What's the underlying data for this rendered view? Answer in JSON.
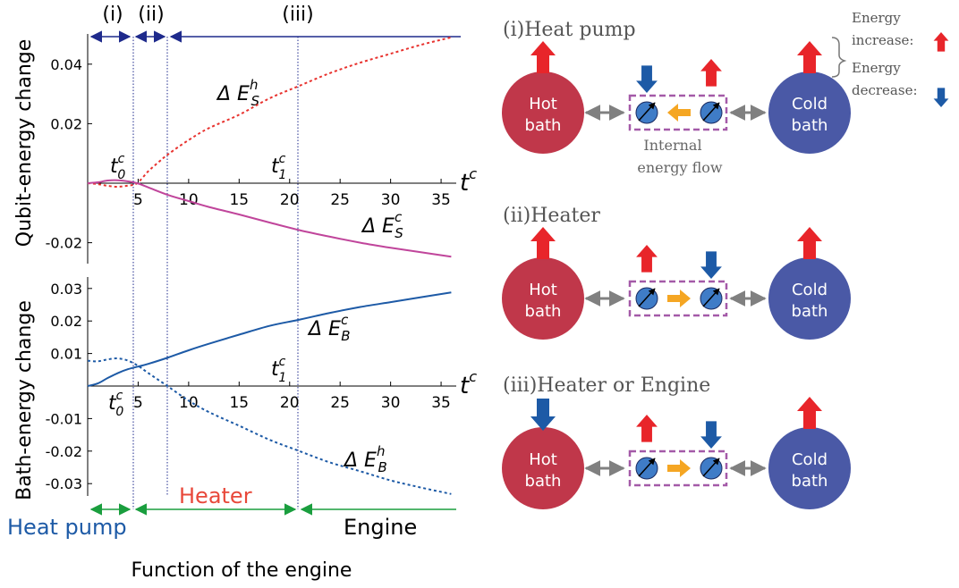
{
  "plot": {
    "phase_labels": [
      "(i)",
      "(ii)",
      "(iii)"
    ],
    "top_ylabel": "Qubit-energy change",
    "bottom_ylabel": "Bath-energy change",
    "xaxis_var": "t",
    "xaxis_sup": "c",
    "t0_label": "t",
    "t0_sub": "0",
    "t0_sup": "c",
    "t1_label": "t",
    "t1_sub": "1",
    "t1_sup": "c",
    "bottom_xlabel": "Function of the engine",
    "function_labels": {
      "heat_pump": "Heat pump",
      "heater": "Heater",
      "engine": "Engine"
    },
    "curve_labels": {
      "es_h": {
        "base": "Δ E",
        "sub": "S",
        "sup": "h"
      },
      "es_c": {
        "base": "Δ E",
        "sub": "S",
        "sup": "c"
      },
      "eb_c": {
        "base": "Δ E",
        "sub": "B",
        "sup": "c"
      },
      "eb_h": {
        "base": "Δ E",
        "sub": "B",
        "sup": "h"
      }
    },
    "x_ticks": [
      "5",
      "10",
      "15",
      "20",
      "25",
      "30",
      "35"
    ],
    "top_yticks": [
      "0.04",
      "0.02",
      "-0.02"
    ],
    "bottom_yticks": [
      "0.03",
      "0.02",
      "0.01",
      "-0.01",
      "-0.02",
      "-0.03"
    ],
    "colors": {
      "es_h": "#e8322e",
      "es_c": "#c0459b",
      "eb": "#1d5aa6",
      "phase": "#1e2a8c",
      "function_arrow": "#1a9e3e",
      "heat_pump_text": "#1d5aa6",
      "heater_text": "#e8483a",
      "engine_text": "#000000"
    }
  },
  "chart_data": [
    {
      "type": "line",
      "title": "",
      "xlabel": "t^c",
      "ylabel": "Qubit-energy change",
      "xlim": [
        0,
        36.5
      ],
      "ylim": [
        -0.026,
        0.052
      ],
      "phase_boundaries": [
        4.9,
        7.9,
        20.8
      ],
      "series": [
        {
          "name": "ΔE_S^h",
          "style": "dotted",
          "x": [
            0,
            1,
            2,
            3,
            4,
            4.9,
            6,
            7,
            8,
            10,
            12,
            15,
            18,
            20.8,
            24,
            27,
            30,
            33,
            36
          ],
          "y": [
            0,
            -0.0003,
            -0.0009,
            -0.0012,
            -0.0008,
            0,
            0.004,
            0.007,
            0.0098,
            0.0145,
            0.0185,
            0.023,
            0.0285,
            0.0325,
            0.037,
            0.0405,
            0.0435,
            0.0465,
            0.049
          ]
        },
        {
          "name": "ΔE_S^c",
          "style": "solid",
          "x": [
            0,
            1,
            2,
            3,
            4,
            4.9,
            6,
            8,
            10,
            12,
            15,
            18,
            21,
            24,
            27,
            30,
            33,
            36
          ],
          "y": [
            0,
            0.0003,
            0.0009,
            0.001,
            0.0006,
            0,
            -0.0014,
            -0.004,
            -0.006,
            -0.008,
            -0.0105,
            -0.0132,
            -0.0158,
            -0.018,
            -0.02,
            -0.0217,
            -0.0232,
            -0.0247
          ]
        }
      ]
    },
    {
      "type": "line",
      "title": "",
      "xlabel": "t^c",
      "ylabel": "Bath-energy change",
      "xlim": [
        0,
        36.5
      ],
      "ylim": [
        -0.036,
        0.032
      ],
      "phase_boundaries": [
        4.9,
        7.9,
        20.8
      ],
      "series": [
        {
          "name": "ΔE_B^c",
          "style": "solid",
          "x": [
            0,
            1,
            2,
            3,
            4,
            5,
            6,
            8,
            10,
            12,
            15,
            18,
            20.8,
            24,
            27,
            30,
            33,
            36
          ],
          "y": [
            0,
            0.0008,
            0.0025,
            0.004,
            0.0052,
            0.006,
            0.0068,
            0.0088,
            0.011,
            0.013,
            0.0158,
            0.0185,
            0.0203,
            0.0225,
            0.0243,
            0.0258,
            0.0273,
            0.0288
          ]
        },
        {
          "name": "ΔE_B^h",
          "style": "dotted",
          "x": [
            0,
            1,
            2,
            3,
            4,
            5,
            6,
            7.9,
            10,
            12,
            15,
            18,
            20.8,
            24,
            27,
            30,
            33,
            36
          ],
          "y": [
            0.0078,
            0.0076,
            0.0082,
            0.0085,
            0.0078,
            0.0062,
            0.004,
            0,
            -0.0045,
            -0.008,
            -0.0122,
            -0.0165,
            -0.0198,
            -0.0235,
            -0.0262,
            -0.029,
            -0.0312,
            -0.0332
          ]
        }
      ]
    }
  ],
  "diagram": {
    "panels": [
      {
        "title": "(i)Heat pump",
        "hot_arrow": "up",
        "cold_arrow": "up",
        "qubit_left": "down",
        "qubit_right": "up",
        "flow": "left"
      },
      {
        "title": "(ii)Heater",
        "hot_arrow": "up",
        "cold_arrow": "up",
        "qubit_left": "up",
        "qubit_right": "down",
        "flow": "right"
      },
      {
        "title": "(iii)Heater or Engine",
        "hot_arrow": "down",
        "cold_arrow": "up",
        "qubit_left": "up",
        "qubit_right": "down",
        "flow": "right"
      }
    ],
    "hot_bath": {
      "line1": "Hot",
      "line2": "bath",
      "color": "#c0374a"
    },
    "cold_bath": {
      "line1": "Cold",
      "line2": "bath",
      "color": "#4a59a6"
    },
    "internal_flow": {
      "line1": "Internal",
      "line2": "energy flow"
    },
    "legend": {
      "increase_1": "Energy",
      "increase_2": "increase:",
      "decrease_1": "Energy",
      "decrease_2": "decrease:"
    },
    "colors": {
      "up_arrow": "#e8252a",
      "down_arrow": "#1d5aa6",
      "flow_arrow": "#f5a623",
      "coupling": "#808080",
      "box": "#a45aa8",
      "qubit": "#3f7cc7"
    }
  }
}
